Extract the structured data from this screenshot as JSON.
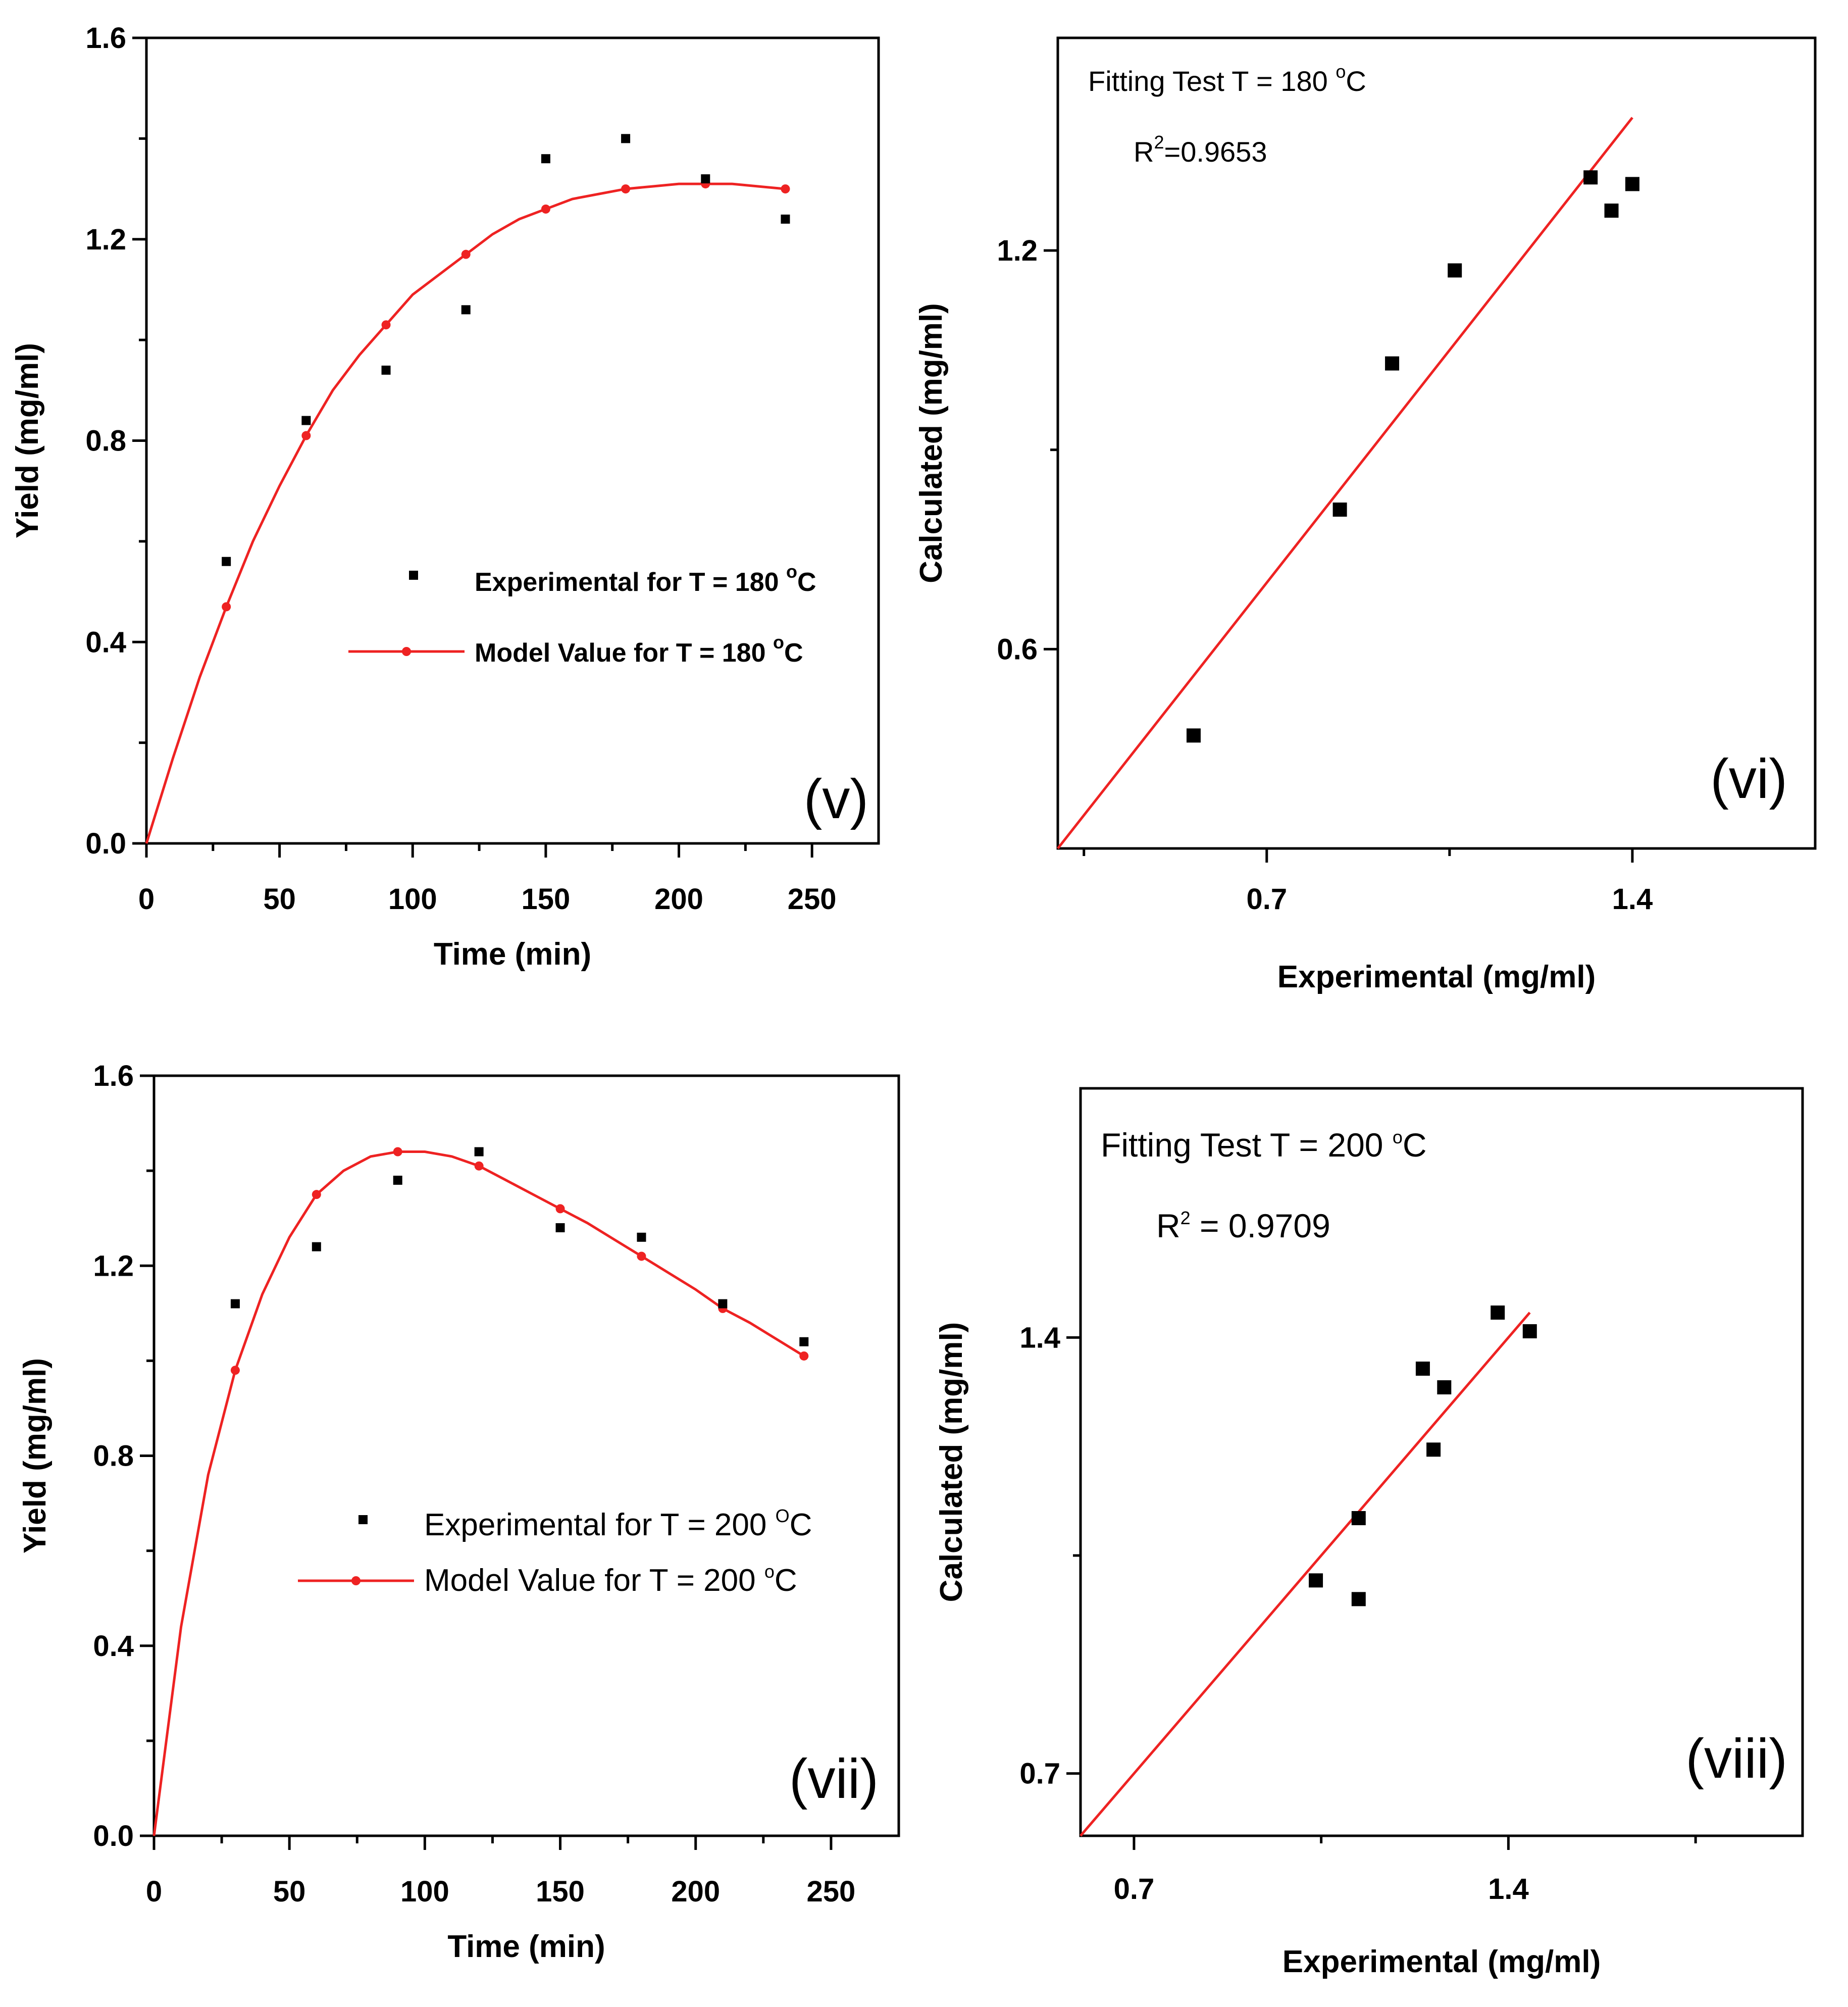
{
  "colors": {
    "model": "#ee2222",
    "experimental": "#000000",
    "axis": "#000000"
  },
  "chart_data": [
    {
      "id": "v",
      "type": "scatter+line",
      "panel_label": "(v)",
      "xlabel": "Time (min)",
      "ylabel": "Yield (mg/ml)",
      "xlim": [
        0,
        275
      ],
      "ylim": [
        0,
        1.6
      ],
      "xticks": [
        0,
        50,
        100,
        150,
        200,
        250
      ],
      "xtick_labels": [
        "0",
        "50",
        "100",
        "150",
        "200",
        "250"
      ],
      "yticks": [
        0,
        0.4,
        0.8,
        1.2,
        1.6
      ],
      "ytick_labels": [
        "0.0",
        "0.4",
        "0.8",
        "1.2",
        "1.6"
      ],
      "series": [
        {
          "name": "Experimental for T = 180 °C",
          "legend_main": "Experimental for T = 180 ",
          "legend_sup": "o",
          "legend_tail": "C",
          "kind": "scatter",
          "x": [
            30,
            60,
            90,
            120,
            150,
            180,
            210,
            240
          ],
          "y": [
            0.56,
            0.84,
            0.94,
            1.06,
            1.36,
            1.4,
            1.32,
            1.24
          ]
        },
        {
          "name": "Model Value for T = 180 °C",
          "legend_main": "Model Value for T = 180 ",
          "legend_sup": "o",
          "legend_tail": "C",
          "kind": "line+points",
          "x": [
            30,
            60,
            90,
            120,
            150,
            180,
            210,
            240
          ],
          "y": [
            0.47,
            0.81,
            1.03,
            1.17,
            1.26,
            1.3,
            1.31,
            1.3
          ],
          "curve_x": [
            0,
            10,
            20,
            30,
            40,
            50,
            60,
            70,
            80,
            90,
            100,
            110,
            120,
            130,
            140,
            150,
            160,
            170,
            180,
            190,
            200,
            210,
            220,
            230,
            240
          ],
          "curve_y": [
            0.0,
            0.17,
            0.33,
            0.47,
            0.6,
            0.71,
            0.81,
            0.9,
            0.97,
            1.03,
            1.09,
            1.13,
            1.17,
            1.21,
            1.24,
            1.26,
            1.28,
            1.29,
            1.3,
            1.305,
            1.31,
            1.31,
            1.31,
            1.305,
            1.3
          ]
        }
      ]
    },
    {
      "id": "vi",
      "type": "scatter+fit",
      "panel_label": "(vi)",
      "xlabel": "Experimental (mg/ml)",
      "ylabel": "Calculated (mg/ml)",
      "xlim": [
        0.3,
        1.75
      ],
      "ylim": [
        0.3,
        1.52
      ],
      "xticks": [
        0.7,
        1.4
      ],
      "xtick_labels": [
        "0.7",
        "1.4"
      ],
      "yticks": [
        0.6,
        1.2
      ],
      "ytick_labels": [
        "0.6",
        "1.2"
      ],
      "annotation_title_main": "Fitting Test T = 180 ",
      "annotation_title_sup": "o",
      "annotation_title_tail": "C",
      "annotation_r2_main": "R",
      "annotation_r2_sup": "2",
      "annotation_r2_tail": "=0.9653",
      "points_x": [
        0.56,
        0.84,
        0.94,
        1.06,
        1.32,
        1.36,
        1.4
      ],
      "points_y": [
        0.47,
        0.81,
        1.03,
        1.17,
        1.31,
        1.26,
        1.3
      ],
      "fit_x": [
        0.3,
        1.4
      ],
      "fit_y": [
        0.3,
        1.4
      ]
    },
    {
      "id": "vii",
      "type": "scatter+line",
      "panel_label": "(vii)",
      "xlabel": "Time (min)",
      "ylabel": "Yield (mg/ml)",
      "xlim": [
        0,
        275
      ],
      "ylim": [
        0,
        1.6
      ],
      "xticks": [
        0,
        50,
        100,
        150,
        200,
        250
      ],
      "xtick_labels": [
        "0",
        "50",
        "100",
        "150",
        "200",
        "250"
      ],
      "yticks": [
        0,
        0.4,
        0.8,
        1.2,
        1.6
      ],
      "ytick_labels": [
        "0.0",
        "0.4",
        "0.8",
        "1.2",
        "1.6"
      ],
      "series": [
        {
          "name": "Experimental for T = 200 °C",
          "legend_main": "Experimental for T = 200 ",
          "legend_sup": "O",
          "legend_tail": "C",
          "kind": "scatter",
          "x": [
            30,
            60,
            90,
            120,
            150,
            180,
            210,
            240
          ],
          "y": [
            1.12,
            1.24,
            1.38,
            1.44,
            1.28,
            1.26,
            1.12,
            1.04
          ]
        },
        {
          "name": "Model Value for T = 200 °C",
          "legend_main": "Model Value for T = 200 ",
          "legend_sup": "o",
          "legend_tail": "C",
          "kind": "line+points",
          "x": [
            30,
            60,
            90,
            120,
            150,
            180,
            210,
            240
          ],
          "y": [
            0.98,
            1.35,
            1.44,
            1.41,
            1.32,
            1.22,
            1.11,
            1.01
          ],
          "curve_x": [
            0,
            10,
            20,
            30,
            40,
            50,
            60,
            70,
            80,
            90,
            100,
            110,
            120,
            130,
            140,
            150,
            160,
            170,
            180,
            190,
            200,
            210,
            220,
            230,
            240
          ],
          "curve_y": [
            0.0,
            0.44,
            0.76,
            0.98,
            1.14,
            1.26,
            1.35,
            1.4,
            1.43,
            1.44,
            1.44,
            1.43,
            1.41,
            1.38,
            1.35,
            1.32,
            1.29,
            1.255,
            1.22,
            1.185,
            1.15,
            1.11,
            1.08,
            1.045,
            1.01
          ]
        }
      ]
    },
    {
      "id": "viii",
      "type": "scatter+fit",
      "panel_label": "(viii)",
      "xlabel": "Experimental (mg/ml)",
      "ylabel": "Calculated (mg/ml)",
      "xlim": [
        0.6,
        1.95
      ],
      "ylim": [
        0.6,
        1.8
      ],
      "xticks": [
        0.7,
        1.4
      ],
      "xtick_labels": [
        "0.7",
        "1.4"
      ],
      "yticks": [
        0.7,
        1.4
      ],
      "ytick_labels": [
        "0.7",
        "1.4"
      ],
      "annotation_title_main": "Fitting Test T = 200 ",
      "annotation_title_sup": "o",
      "annotation_title_tail": "C",
      "annotation_r2_main": "R",
      "annotation_r2_sup": "2",
      "annotation_r2_tail": " = 0.9709",
      "points_x": [
        1.04,
        1.12,
        1.12,
        1.24,
        1.26,
        1.28,
        1.38,
        1.44
      ],
      "points_y": [
        1.01,
        0.98,
        1.11,
        1.35,
        1.22,
        1.32,
        1.44,
        1.41
      ],
      "fit_x": [
        0.6,
        1.44
      ],
      "fit_y": [
        0.6,
        1.44
      ]
    }
  ]
}
